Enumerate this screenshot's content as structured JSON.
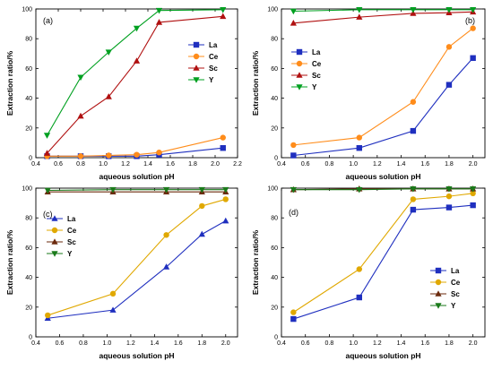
{
  "colors": {
    "La": "#1f2fbf",
    "Ce": "#ff8c1a",
    "Sc": "#b01010",
    "Y": "#00a020",
    "Ce_alt": "#e0a800",
    "Sc_alt": "#6b2a0c",
    "Y_alt": "#1a7a1a"
  },
  "chart_data": [
    {
      "type": "line",
      "panel_label": "(a)",
      "xlabel": "aqueous solution pH",
      "ylabel": "Extraction ratio/%",
      "xlim": [
        0.4,
        2.2
      ],
      "ylim": [
        0,
        100
      ],
      "xticks": [
        "0.4",
        "0.6",
        "0.8",
        "1.0",
        "1.2",
        "1.4",
        "1.6",
        "1.8",
        "2.0",
        "2.2"
      ],
      "yticks": [
        "0",
        "20",
        "40",
        "60",
        "80",
        "100"
      ],
      "legend_position": "right-middle",
      "series": [
        {
          "name": "La",
          "marker": "square",
          "color_key": "La",
          "x": [
            0.5,
            0.8,
            1.05,
            1.3,
            1.5,
            2.07
          ],
          "y": [
            1,
            1,
            1,
            1,
            2,
            6.5
          ]
        },
        {
          "name": "Ce",
          "marker": "circle",
          "color_key": "Ce",
          "x": [
            0.5,
            0.8,
            1.05,
            1.3,
            1.5,
            2.07
          ],
          "y": [
            1,
            1,
            1.5,
            2,
            3.5,
            13.5
          ]
        },
        {
          "name": "Sc",
          "marker": "triangle-up",
          "color_key": "Sc",
          "x": [
            0.5,
            0.8,
            1.05,
            1.3,
            1.5,
            2.07
          ],
          "y": [
            3,
            28,
            41,
            65,
            91,
            95
          ]
        },
        {
          "name": "Y",
          "marker": "triangle-down",
          "color_key": "Y",
          "x": [
            0.5,
            0.8,
            1.05,
            1.3,
            1.5,
            2.07
          ],
          "y": [
            15,
            54,
            71,
            87,
            99,
            99.5
          ]
        }
      ]
    },
    {
      "type": "line",
      "panel_label": "(b)",
      "xlabel": "aqueous solution pH",
      "ylabel": "Extraction ratio/%",
      "xlim": [
        0.4,
        2.1
      ],
      "ylim": [
        0,
        100
      ],
      "xticks": [
        "0.4",
        "0.6",
        "0.8",
        "1.0",
        "1.2",
        "1.4",
        "1.6",
        "1.8",
        "2.0"
      ],
      "yticks": [
        "0",
        "20",
        "40",
        "60",
        "80",
        "100"
      ],
      "legend_position": "left-middle",
      "series": [
        {
          "name": "La",
          "marker": "square",
          "color_key": "La",
          "x": [
            0.5,
            1.05,
            1.5,
            1.8,
            2.0
          ],
          "y": [
            1.5,
            6.5,
            18,
            49,
            67
          ]
        },
        {
          "name": "Ce",
          "marker": "circle",
          "color_key": "Ce",
          "x": [
            0.5,
            1.05,
            1.5,
            1.8,
            2.0
          ],
          "y": [
            8.5,
            13.5,
            37.5,
            74.5,
            87
          ]
        },
        {
          "name": "Sc",
          "marker": "triangle-up",
          "color_key": "Sc",
          "x": [
            0.5,
            1.05,
            1.5,
            1.8,
            2.0
          ],
          "y": [
            90.5,
            94.5,
            97,
            97.5,
            98
          ]
        },
        {
          "name": "Y",
          "marker": "triangle-down",
          "color_key": "Y",
          "x": [
            0.5,
            1.05,
            1.5,
            1.8,
            2.0
          ],
          "y": [
            98.5,
            99.5,
            99.5,
            99.5,
            99.5
          ]
        }
      ]
    },
    {
      "type": "line",
      "panel_label": "(c)",
      "xlabel": "aqueous solution pH",
      "ylabel": "Extraction ratio/%",
      "xlim": [
        0.4,
        2.1
      ],
      "ylim": [
        0,
        100
      ],
      "xticks": [
        "0.4",
        "0.6",
        "0.8",
        "1.0",
        "1.2",
        "1.4",
        "1.6",
        "1.8",
        "2.0"
      ],
      "yticks": [
        "0",
        "20",
        "40",
        "60",
        "80",
        "100"
      ],
      "legend_position": "left-upper",
      "series": [
        {
          "name": "La",
          "marker": "triangle-up",
          "color_key": "La",
          "x": [
            0.5,
            1.05,
            1.5,
            1.8,
            2.0
          ],
          "y": [
            12.5,
            18,
            47,
            69,
            78
          ]
        },
        {
          "name": "Ce",
          "marker": "circle",
          "color_key": "Ce_alt",
          "x": [
            0.5,
            1.05,
            1.5,
            1.8,
            2.0
          ],
          "y": [
            14.5,
            29,
            68.5,
            88,
            92.5
          ]
        },
        {
          "name": "Sc",
          "marker": "triangle-up",
          "color_key": "Sc_alt",
          "x": [
            0.5,
            1.05,
            1.5,
            1.8,
            2.0
          ],
          "y": [
            97.5,
            97.5,
            97.5,
            97.5,
            97.5
          ]
        },
        {
          "name": "Y",
          "marker": "triangle-down",
          "color_key": "Y_alt",
          "x": [
            0.5,
            1.05,
            1.5,
            1.8,
            2.0
          ],
          "y": [
            98.5,
            99,
            99,
            99,
            99
          ]
        }
      ]
    },
    {
      "type": "line",
      "panel_label": "(d)",
      "xlabel": "aqueous solution pH",
      "ylabel": "Extraction ratio/%",
      "xlim": [
        0.4,
        2.1
      ],
      "ylim": [
        0,
        100
      ],
      "xticks": [
        "0.4",
        "0.6",
        "0.8",
        "1.0",
        "1.2",
        "1.4",
        "1.6",
        "1.8",
        "2.0"
      ],
      "yticks": [
        "0",
        "20",
        "40",
        "60",
        "80",
        "100"
      ],
      "legend_position": "right-lower",
      "series": [
        {
          "name": "La",
          "marker": "square",
          "color_key": "La",
          "x": [
            0.5,
            1.05,
            1.5,
            1.8,
            2.0
          ],
          "y": [
            12,
            26.5,
            85.5,
            87,
            88.5
          ]
        },
        {
          "name": "Ce",
          "marker": "circle",
          "color_key": "Ce_alt",
          "x": [
            0.5,
            1.05,
            1.5,
            1.8,
            2.0
          ],
          "y": [
            16.5,
            45.5,
            92.5,
            94.5,
            96.5
          ]
        },
        {
          "name": "Sc",
          "marker": "triangle-up",
          "color_key": "Sc_alt",
          "x": [
            0.5,
            1.05,
            1.5,
            1.8,
            2.0
          ],
          "y": [
            99,
            99.5,
            99.5,
            99.5,
            99.5
          ]
        },
        {
          "name": "Y",
          "marker": "triangle-down",
          "color_key": "Y_alt",
          "x": [
            0.5,
            1.05,
            1.5,
            1.8,
            2.0
          ],
          "y": [
            99,
            99,
            99.5,
            99.5,
            99.5
          ]
        }
      ]
    }
  ]
}
